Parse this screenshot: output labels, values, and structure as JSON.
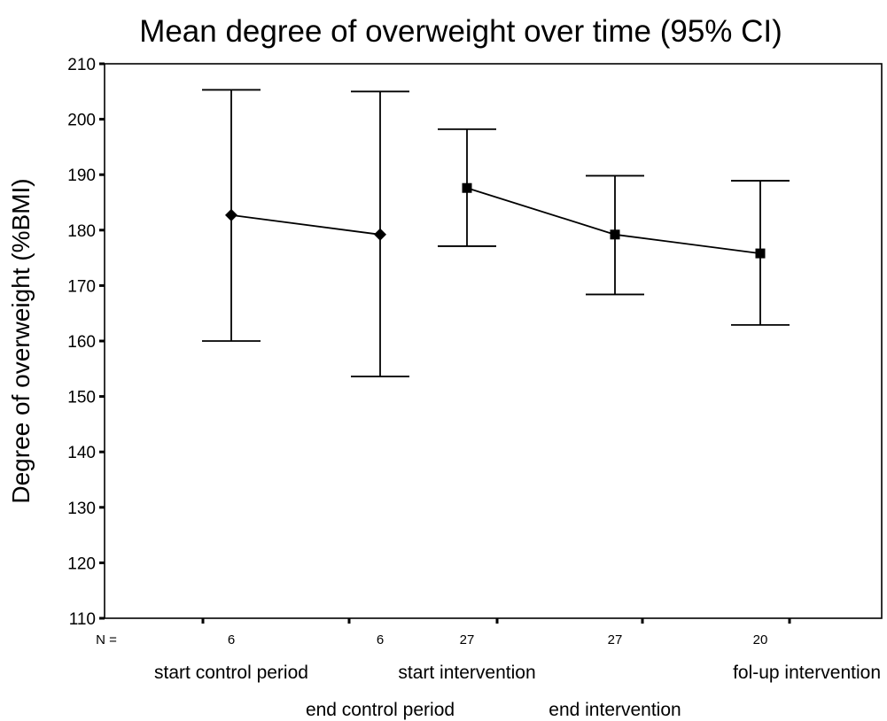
{
  "chart_data": {
    "type": "line",
    "title": "Mean degree of overweight over time (95% CI)",
    "xlabel": "",
    "ylabel": "Degree of overweight (%BMI)",
    "ylim": [
      110,
      210
    ],
    "yticks": [
      110,
      120,
      130,
      140,
      150,
      160,
      170,
      180,
      190,
      200,
      210
    ],
    "n_label": "N =",
    "categories": [
      "start control period",
      "end control period",
      "start intervention",
      "end intervention",
      "fol-up intervention"
    ],
    "n": [
      "6",
      "6",
      "27",
      "27",
      "20"
    ],
    "series": [
      {
        "marker": "diamond",
        "points": [
          {
            "category": "start control period",
            "mean": 182.7,
            "ci_low": 160.0,
            "ci_high": 205.3
          },
          {
            "category": "end control period",
            "mean": 179.2,
            "ci_low": 153.6,
            "ci_high": 205.0
          }
        ]
      },
      {
        "marker": "square",
        "points": [
          {
            "category": "start intervention",
            "mean": 187.6,
            "ci_low": 177.1,
            "ci_high": 198.2
          },
          {
            "category": "end intervention",
            "mean": 179.2,
            "ci_low": 168.4,
            "ci_high": 189.8
          },
          {
            "category": "fol-up intervention",
            "mean": 175.8,
            "ci_low": 162.9,
            "ci_high": 188.9
          }
        ]
      }
    ],
    "grid": false,
    "legend": "none",
    "colors": {
      "line": "#000000",
      "background": "#ffffff"
    }
  }
}
